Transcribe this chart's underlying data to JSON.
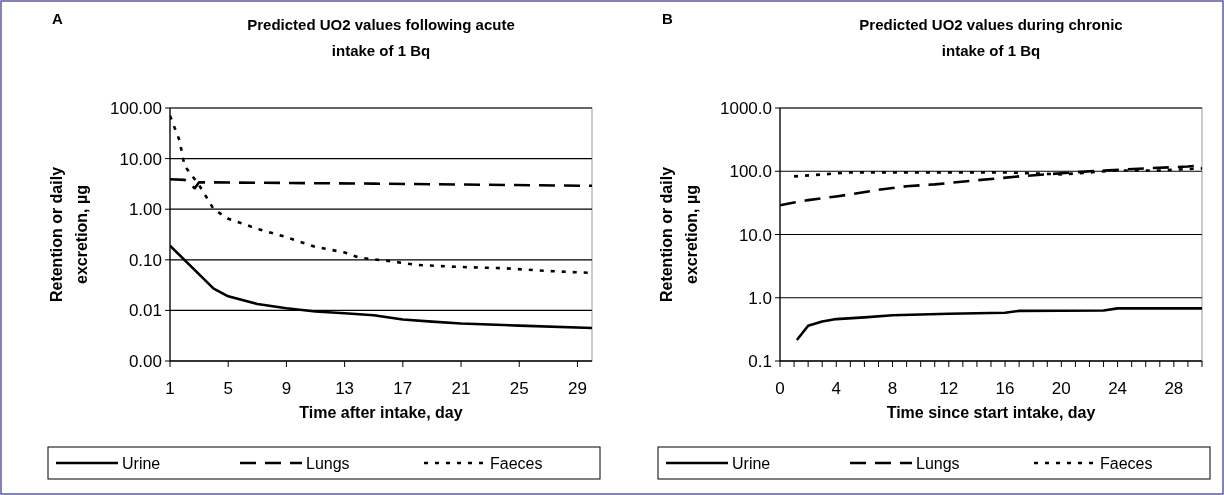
{
  "chart_data": [
    {
      "type": "line",
      "title": "Predicted UO2 values following acute intake of 1 Bq",
      "xlabel": "Time after intake, day",
      "ylabel": "Retention or daily excretion, µg",
      "annotations": [
        "A"
      ],
      "log": "y",
      "grid": "y",
      "legend": "bottom",
      "xlim": [
        1,
        30
      ],
      "xticks": [
        1,
        5,
        9,
        13,
        17,
        21,
        25,
        29
      ],
      "ylim": [
        0.001,
        100
      ],
      "yticks": [
        {
          "value": 0.001,
          "label": "0.00"
        },
        {
          "value": 0.01,
          "label": "0.01"
        },
        {
          "value": 0.1,
          "label": "0.10"
        },
        {
          "value": 1,
          "label": "1.00"
        },
        {
          "value": 10,
          "label": "10.00"
        },
        {
          "value": 100,
          "label": "100.00"
        }
      ],
      "series": [
        {
          "name": "Urine",
          "color": "#000000",
          "line_style": "solid",
          "x": [
            1,
            4,
            5,
            7,
            9,
            11,
            13,
            15,
            17,
            19,
            21,
            25,
            30
          ],
          "values": [
            0.19,
            0.027,
            0.019,
            0.0134,
            0.011,
            0.0095,
            0.0088,
            0.008,
            0.0066,
            0.006,
            0.0055,
            0.005,
            0.0045
          ]
        },
        {
          "name": "Lungs",
          "color": "#000000",
          "line_style": "dashed",
          "x": [
            1,
            2,
            2.7,
            3,
            15,
            30
          ],
          "values": [
            3.9,
            3.8,
            2.6,
            3.4,
            3.2,
            2.9
          ]
        },
        {
          "name": "Faeces",
          "color": "#000000",
          "line_style": "dotted",
          "x": [
            1,
            1.65,
            2,
            3,
            4,
            5,
            7,
            9,
            11,
            13,
            14,
            16,
            18,
            21,
            24,
            27,
            30
          ],
          "values": [
            70,
            23,
            7.2,
            3,
            1,
            0.65,
            0.41,
            0.28,
            0.18,
            0.14,
            0.11,
            0.095,
            0.079,
            0.072,
            0.068,
            0.06,
            0.055
          ]
        }
      ]
    },
    {
      "type": "line",
      "title": "Predicted UO2 values during chronic intake of 1 Bq",
      "xlabel": "Time since start intake, day",
      "ylabel": "Retention or daily excretion, µg",
      "annotations": [
        "B"
      ],
      "log": "y",
      "grid": "y",
      "legend": "bottom",
      "xlim": [
        0,
        30
      ],
      "xticks": [
        0,
        {
          "value": 1,
          "label": null
        },
        {
          "value": 2,
          "label": null
        },
        {
          "value": 3,
          "label": null
        },
        4,
        {
          "value": 5,
          "label": null
        },
        {
          "value": 6,
          "label": null
        },
        {
          "value": 7,
          "label": null
        },
        8,
        {
          "value": 9,
          "label": null
        },
        {
          "value": 10,
          "label": null
        },
        {
          "value": 11,
          "label": null
        },
        12,
        {
          "value": 13,
          "label": null
        },
        {
          "value": 14,
          "label": null
        },
        {
          "value": 15,
          "label": null
        },
        16,
        {
          "value": 17,
          "label": null
        },
        {
          "value": 18,
          "label": null
        },
        {
          "value": 19,
          "label": null
        },
        20,
        {
          "value": 21,
          "label": null
        },
        {
          "value": 22,
          "label": null
        },
        {
          "value": 23,
          "label": null
        },
        24,
        {
          "value": 25,
          "label": null
        },
        {
          "value": 26,
          "label": null
        },
        {
          "value": 27,
          "label": null
        },
        28,
        {
          "value": 29,
          "label": null
        },
        {
          "value": 30,
          "label": null
        }
      ],
      "ylim": [
        0.1,
        1000
      ],
      "yticks": [
        {
          "value": 0.1,
          "label": "0.1"
        },
        {
          "value": 1,
          "label": "1.0"
        },
        {
          "value": 10,
          "label": "10.0"
        },
        {
          "value": 100,
          "label": "100.0"
        },
        {
          "value": 1000,
          "label": "1000.0"
        }
      ],
      "series": [
        {
          "name": "Urine",
          "color": "#000000",
          "line_style": "solid",
          "x": [
            1.2,
            2,
            3,
            4,
            6,
            8,
            12,
            16,
            17,
            23,
            24,
            30
          ],
          "values": [
            0.215,
            0.36,
            0.42,
            0.46,
            0.49,
            0.53,
            0.56,
            0.58,
            0.62,
            0.63,
            0.68,
            0.68
          ]
        },
        {
          "name": "Lungs",
          "color": "#000000",
          "line_style": "dashed",
          "x": [
            0,
            1,
            2,
            4,
            5,
            7,
            9,
            11,
            14,
            17,
            20,
            23,
            26,
            29,
            30
          ],
          "values": [
            29,
            32,
            35,
            40,
            43,
            51,
            58,
            62,
            72,
            83,
            93,
            103,
            111,
            119,
            124
          ]
        },
        {
          "name": "Faeces",
          "color": "#000000",
          "line_style": "dotted",
          "x": [
            1,
            3,
            5,
            8,
            12,
            16,
            20,
            24,
            27,
            30
          ],
          "values": [
            83,
            89,
            96,
            96,
            96,
            96,
            89,
            103,
            103,
            111
          ]
        }
      ]
    }
  ]
}
